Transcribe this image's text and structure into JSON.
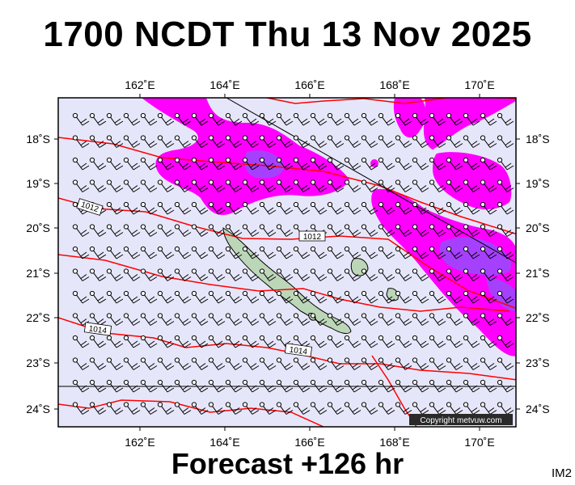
{
  "title": "1700 NCDT Thu 13 Nov 2025",
  "footer": "Forecast +126 hr",
  "corner_label": "IM2",
  "copyright": "Copyright metvuw.com",
  "longitude_ticks": [
    "162˚E",
    "164˚E",
    "166˚E",
    "168˚E",
    "170˚E"
  ],
  "latitude_ticks": [
    "18˚S",
    "19˚S",
    "20˚S",
    "21˚S",
    "22˚S",
    "23˚S",
    "24˚S"
  ],
  "isobar_labels": [
    "1012",
    "1012",
    "1014",
    "1014"
  ],
  "colors": {
    "background": "#e6e6fa",
    "rain_light": "#ff00ff",
    "rain_heavy": "#9a30ff",
    "isobar": "#ff0000",
    "land": "#bcd6b8"
  },
  "icons": [
    "wind-barb-icon"
  ]
}
